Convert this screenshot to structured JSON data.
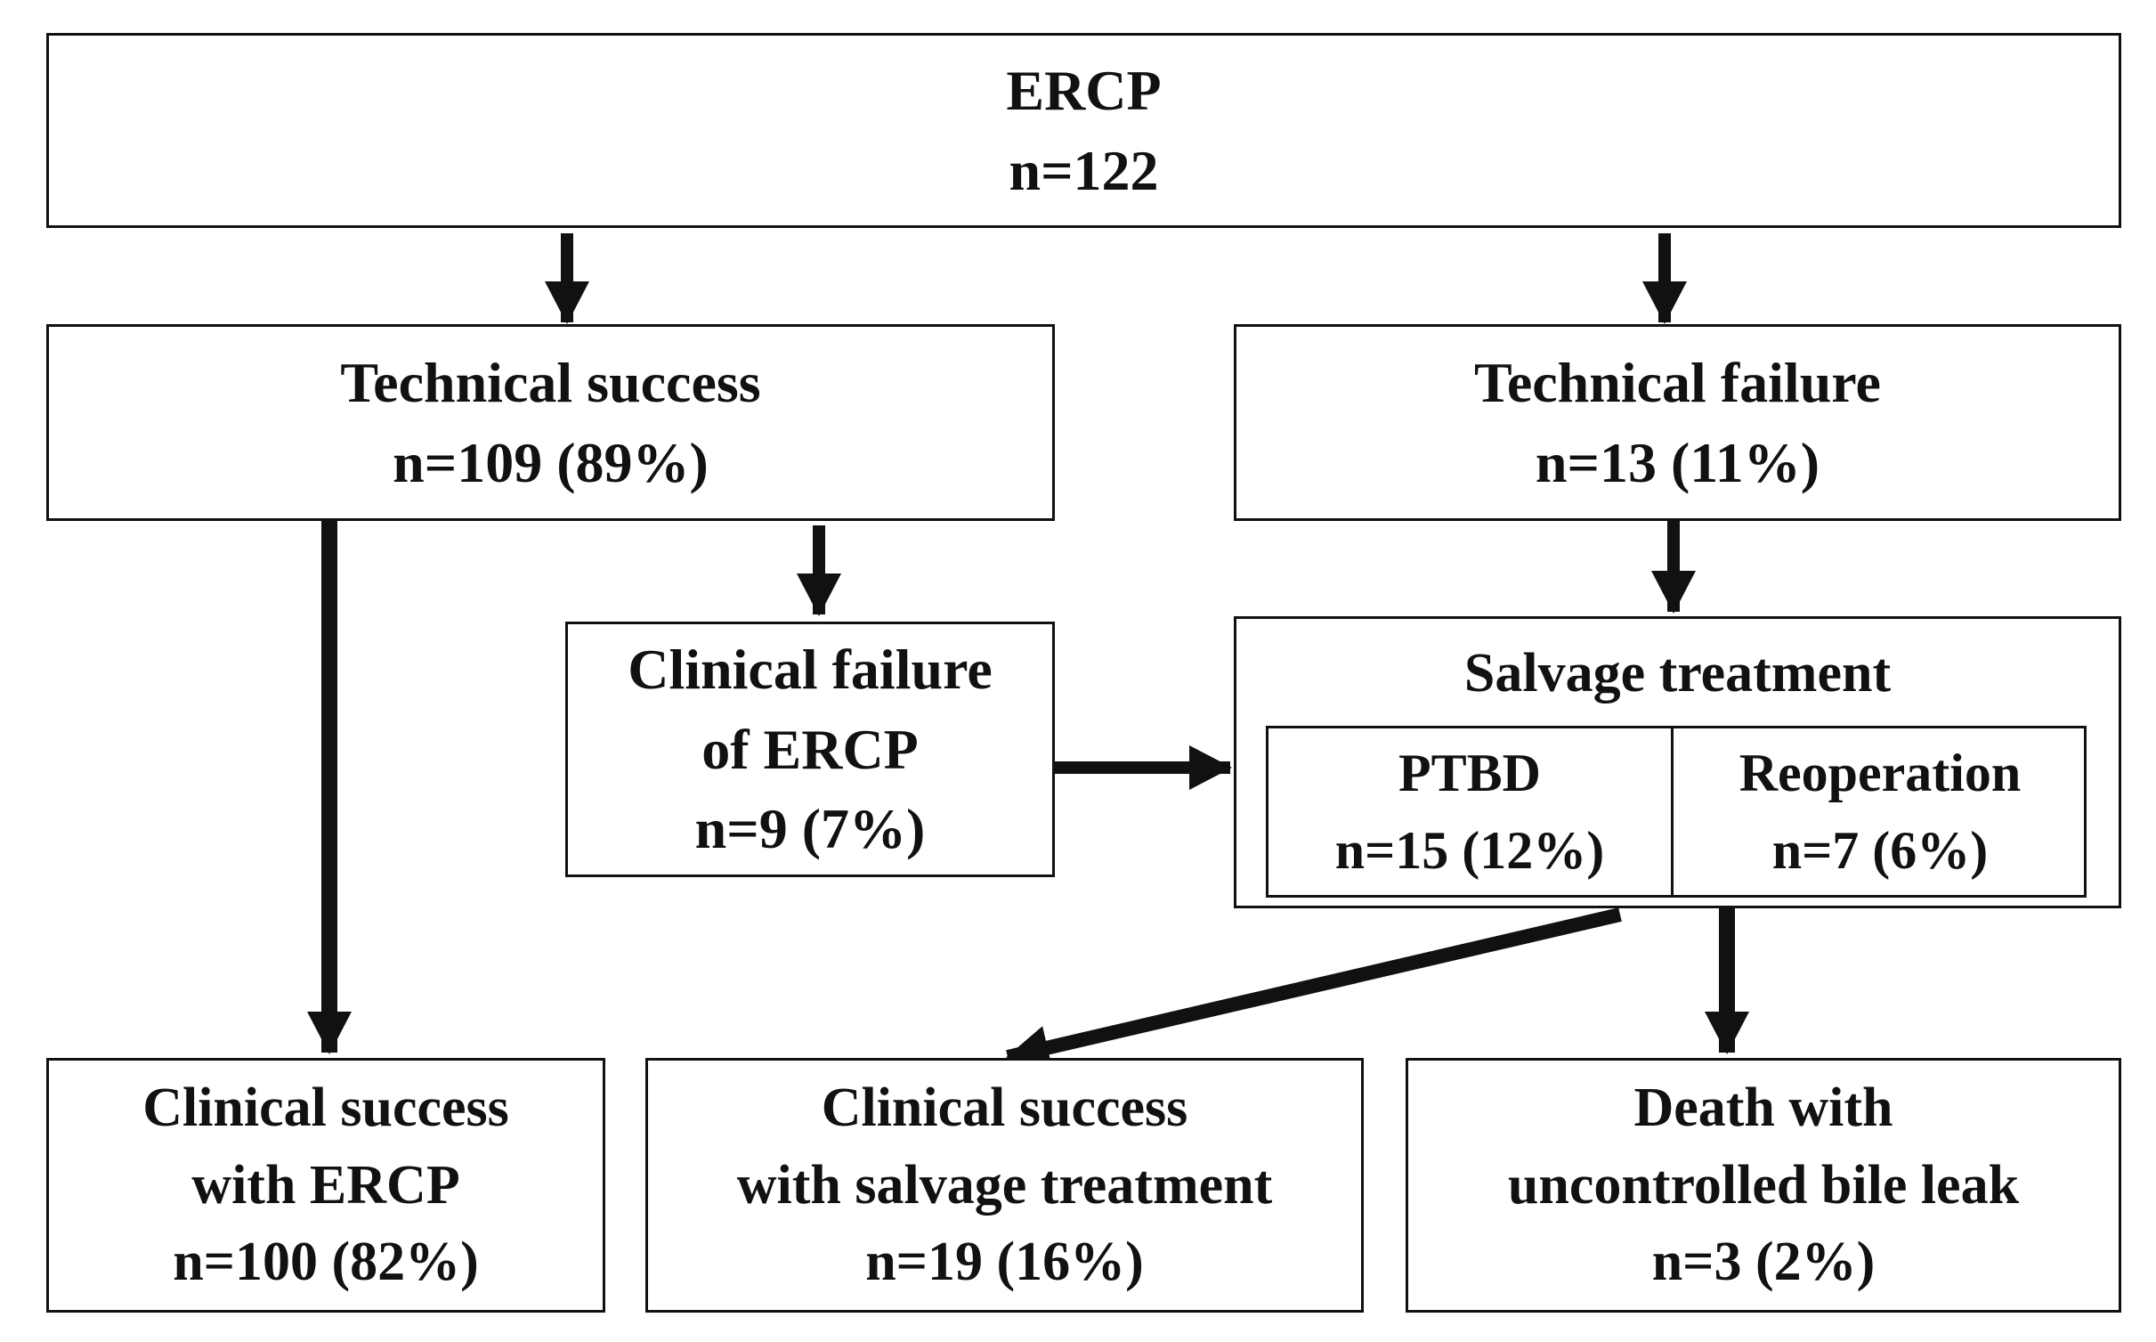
{
  "ercp": {
    "title": "ERCP",
    "count": "n=122"
  },
  "technical_success": {
    "title": "Technical success",
    "count": "n=109 (89%)"
  },
  "technical_failure": {
    "title": "Technical failure",
    "count": "n=13 (11%)"
  },
  "clinical_failure": {
    "line1": "Clinical failure",
    "line2": "of ERCP",
    "count": "n=9 (7%)"
  },
  "salvage": {
    "title": "Salvage treatment",
    "ptbd": {
      "title": "PTBD",
      "count": "n=15 (12%)"
    },
    "reoperation": {
      "title": "Reoperation",
      "count": "n=7 (6%)"
    }
  },
  "clinical_success_ercp": {
    "line1": "Clinical success",
    "line2": "with ERCP",
    "count": "n=100 (82%)"
  },
  "clinical_success_salvage": {
    "line1": "Clinical success",
    "line2": "with salvage treatment",
    "count": "n=19 (16%)"
  },
  "death": {
    "line1": "Death with",
    "line2": "uncontrolled bile leak",
    "count": "n=3 (2%)"
  }
}
